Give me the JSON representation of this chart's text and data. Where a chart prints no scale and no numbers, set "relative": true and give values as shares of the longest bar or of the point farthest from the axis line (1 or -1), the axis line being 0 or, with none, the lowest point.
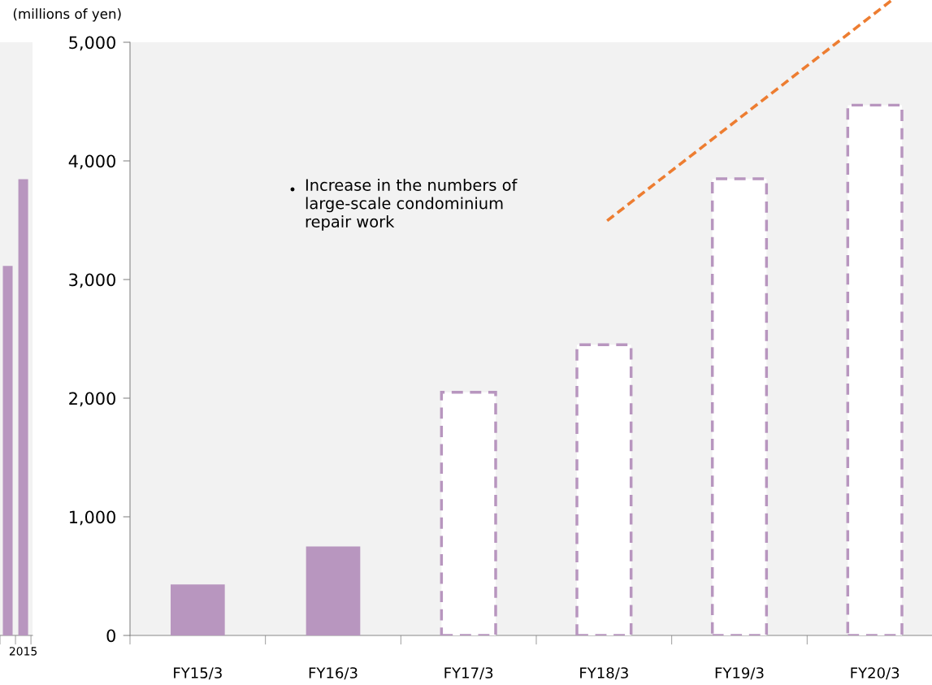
{
  "chart_data": [
    {
      "type": "bar",
      "relative": true,
      "categories": [
        null,
        "2015"
      ],
      "values": [
        0.81,
        1
      ],
      "color": "#b896bf"
    },
    {
      "type": "bar",
      "ylabel": "(millions of yen)",
      "categories": [
        "FY15/3",
        "FY16/3",
        "FY17/3",
        "FY18/3",
        "FY19/3",
        "FY20/3"
      ],
      "series": [
        {
          "color": "#b896bf",
          "line_style": "solid",
          "values": [
            430,
            750,
            null,
            null,
            null,
            null
          ]
        },
        {
          "color": "#b896bf",
          "line_style": "dashed",
          "values": [
            null,
            null,
            2050,
            2450,
            3850,
            4470
          ]
        }
      ],
      "ylim": [
        0,
        5000
      ],
      "yticks": [
        {
          "value": 0,
          "label": "0"
        },
        {
          "value": 1000,
          "label": "1,000"
        },
        {
          "value": 2000,
          "label": "2,000"
        },
        {
          "value": 3000,
          "label": "3,000"
        },
        {
          "value": 4000,
          "label": "4,000"
        },
        {
          "value": 5000,
          "label": "5,000"
        }
      ],
      "annotations": [
        "Increase in the numbers of\nlarge-scale condominium\nrepair work"
      ]
    }
  ]
}
